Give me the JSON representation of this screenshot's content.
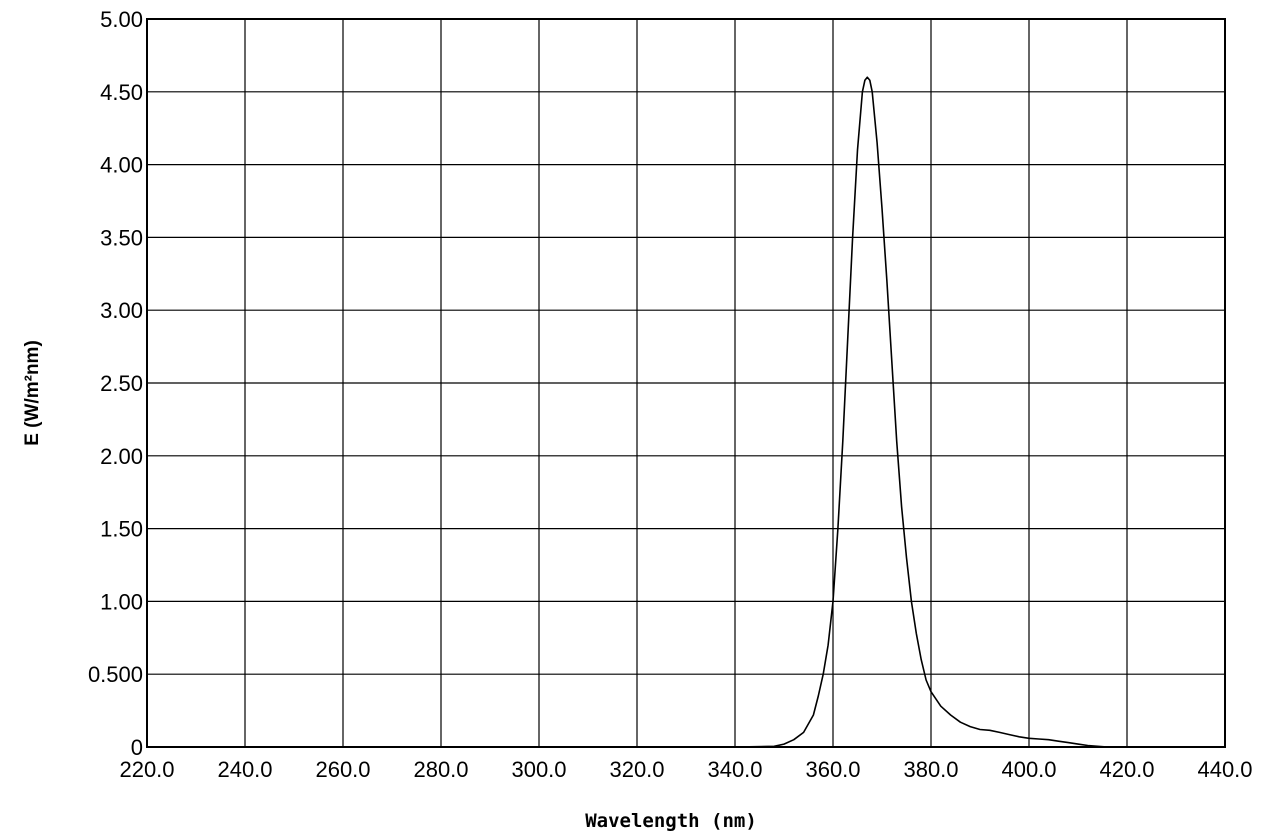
{
  "chart_data": {
    "type": "line",
    "title": "",
    "xlabel": "Wavelength (nm)",
    "ylabel": "E  (W/m²nm)",
    "xlim": [
      220,
      440
    ],
    "ylim": [
      0,
      5
    ],
    "grid": true,
    "x_tick_labels": [
      "220.0",
      "240.0",
      "260.0",
      "280.0",
      "300.0",
      "320.0",
      "340.0",
      "360.0",
      "380.0",
      "400.0",
      "420.0",
      "440.0"
    ],
    "y_tick_labels": [
      "0",
      "0.500",
      "1.00",
      "1.50",
      "2.00",
      "2.50",
      "3.00",
      "3.50",
      "4.00",
      "4.50",
      "5.00"
    ],
    "x_ticks": [
      220,
      240,
      260,
      280,
      300,
      320,
      340,
      360,
      380,
      400,
      420,
      440
    ],
    "y_ticks": [
      0,
      0.5,
      1,
      1.5,
      2,
      2.5,
      3,
      3.5,
      4,
      4.5,
      5
    ],
    "series": [
      {
        "color": "#000000",
        "x": [
          220,
          340,
          348,
          350,
          352,
          354,
          356,
          357,
          358,
          359,
          360,
          361,
          362,
          363,
          364,
          365,
          366,
          366.5,
          367,
          367.5,
          368,
          369,
          370,
          371,
          372,
          373,
          374,
          375,
          376,
          377,
          378,
          379,
          380,
          382,
          384,
          386,
          388,
          390,
          392,
          394,
          396,
          398,
          400,
          402,
          404,
          406,
          408,
          410,
          412,
          414,
          416,
          420,
          440
        ],
        "y": [
          0,
          0,
          0.005,
          0.02,
          0.05,
          0.1,
          0.22,
          0.35,
          0.5,
          0.7,
          1.0,
          1.5,
          2.1,
          2.8,
          3.5,
          4.1,
          4.5,
          4.58,
          4.6,
          4.58,
          4.5,
          4.15,
          3.7,
          3.2,
          2.65,
          2.1,
          1.65,
          1.3,
          1.0,
          0.78,
          0.6,
          0.46,
          0.38,
          0.28,
          0.22,
          0.17,
          0.14,
          0.12,
          0.115,
          0.1,
          0.085,
          0.07,
          0.06,
          0.055,
          0.05,
          0.04,
          0.03,
          0.02,
          0.01,
          0.005,
          0,
          0,
          0
        ]
      }
    ]
  }
}
